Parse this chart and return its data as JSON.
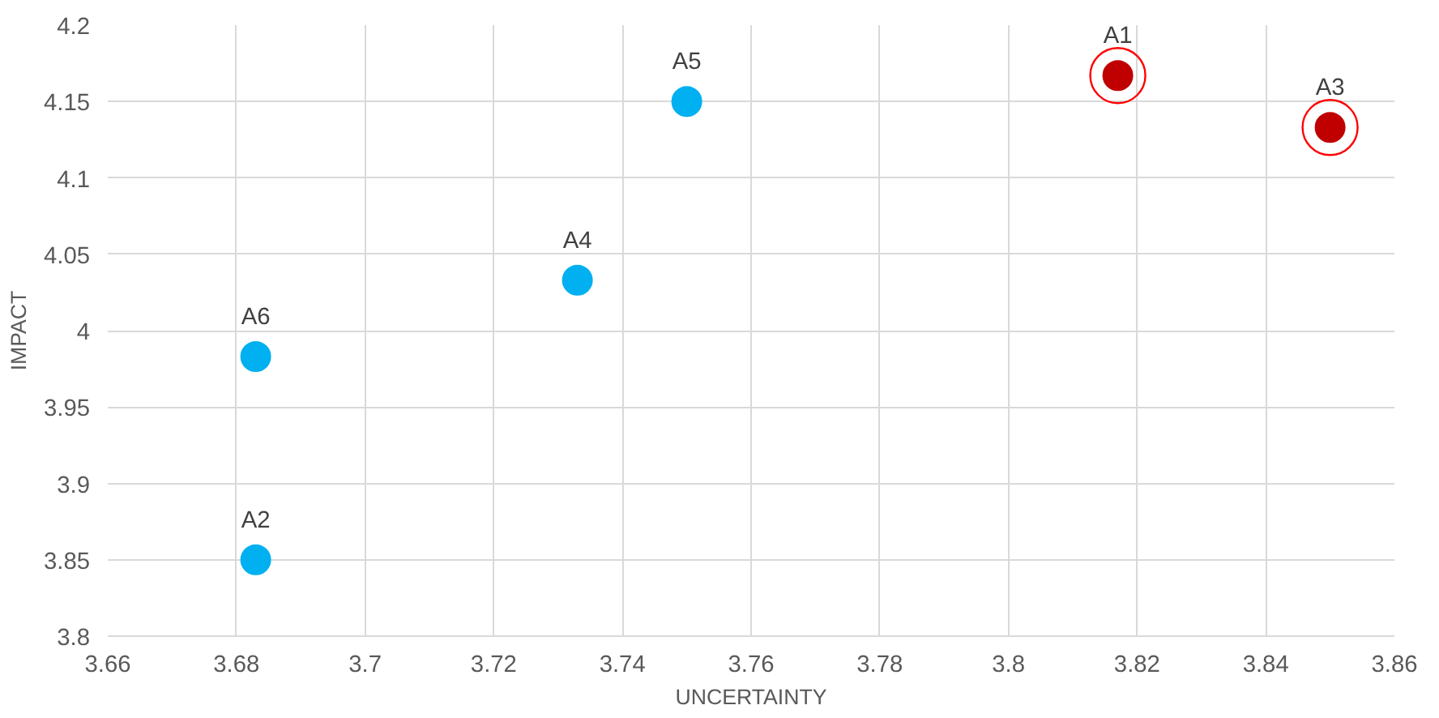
{
  "chart_data": {
    "type": "scatter",
    "xlabel": "UNCERTAINTY",
    "ylabel": "IMPACT",
    "xlim": [
      3.66,
      3.86
    ],
    "xticks": [
      3.66,
      3.68,
      3.7,
      3.72,
      3.74,
      3.76,
      3.78,
      3.8,
      3.82,
      3.84,
      3.86
    ],
    "ylim": [
      3.8,
      4.2
    ],
    "yticks": [
      3.8,
      3.85,
      3.9,
      3.95,
      4,
      4.05,
      4.1,
      4.15,
      4.2
    ],
    "grid": true,
    "marker": "circle",
    "series": [
      {
        "color": "#00b0f0",
        "x": [
          3.683,
          3.733,
          3.75,
          3.683
        ],
        "values": [
          3.85,
          4.033,
          4.15,
          3.983
        ]
      },
      {
        "color": "#c00000",
        "x": [
          3.817,
          3.85
        ],
        "values": [
          4.167,
          4.133
        ]
      }
    ],
    "annotations": [
      {
        "text": "A1",
        "x": 3.817,
        "y": 4.167
      },
      {
        "text": "A2",
        "x": 3.683,
        "y": 3.85
      },
      {
        "text": "A3",
        "x": 3.85,
        "y": 4.133
      },
      {
        "text": "A4",
        "x": 3.733,
        "y": 4.033
      },
      {
        "text": "A5",
        "x": 3.75,
        "y": 4.15
      },
      {
        "text": "A6",
        "x": 3.683,
        "y": 3.983
      }
    ]
  }
}
